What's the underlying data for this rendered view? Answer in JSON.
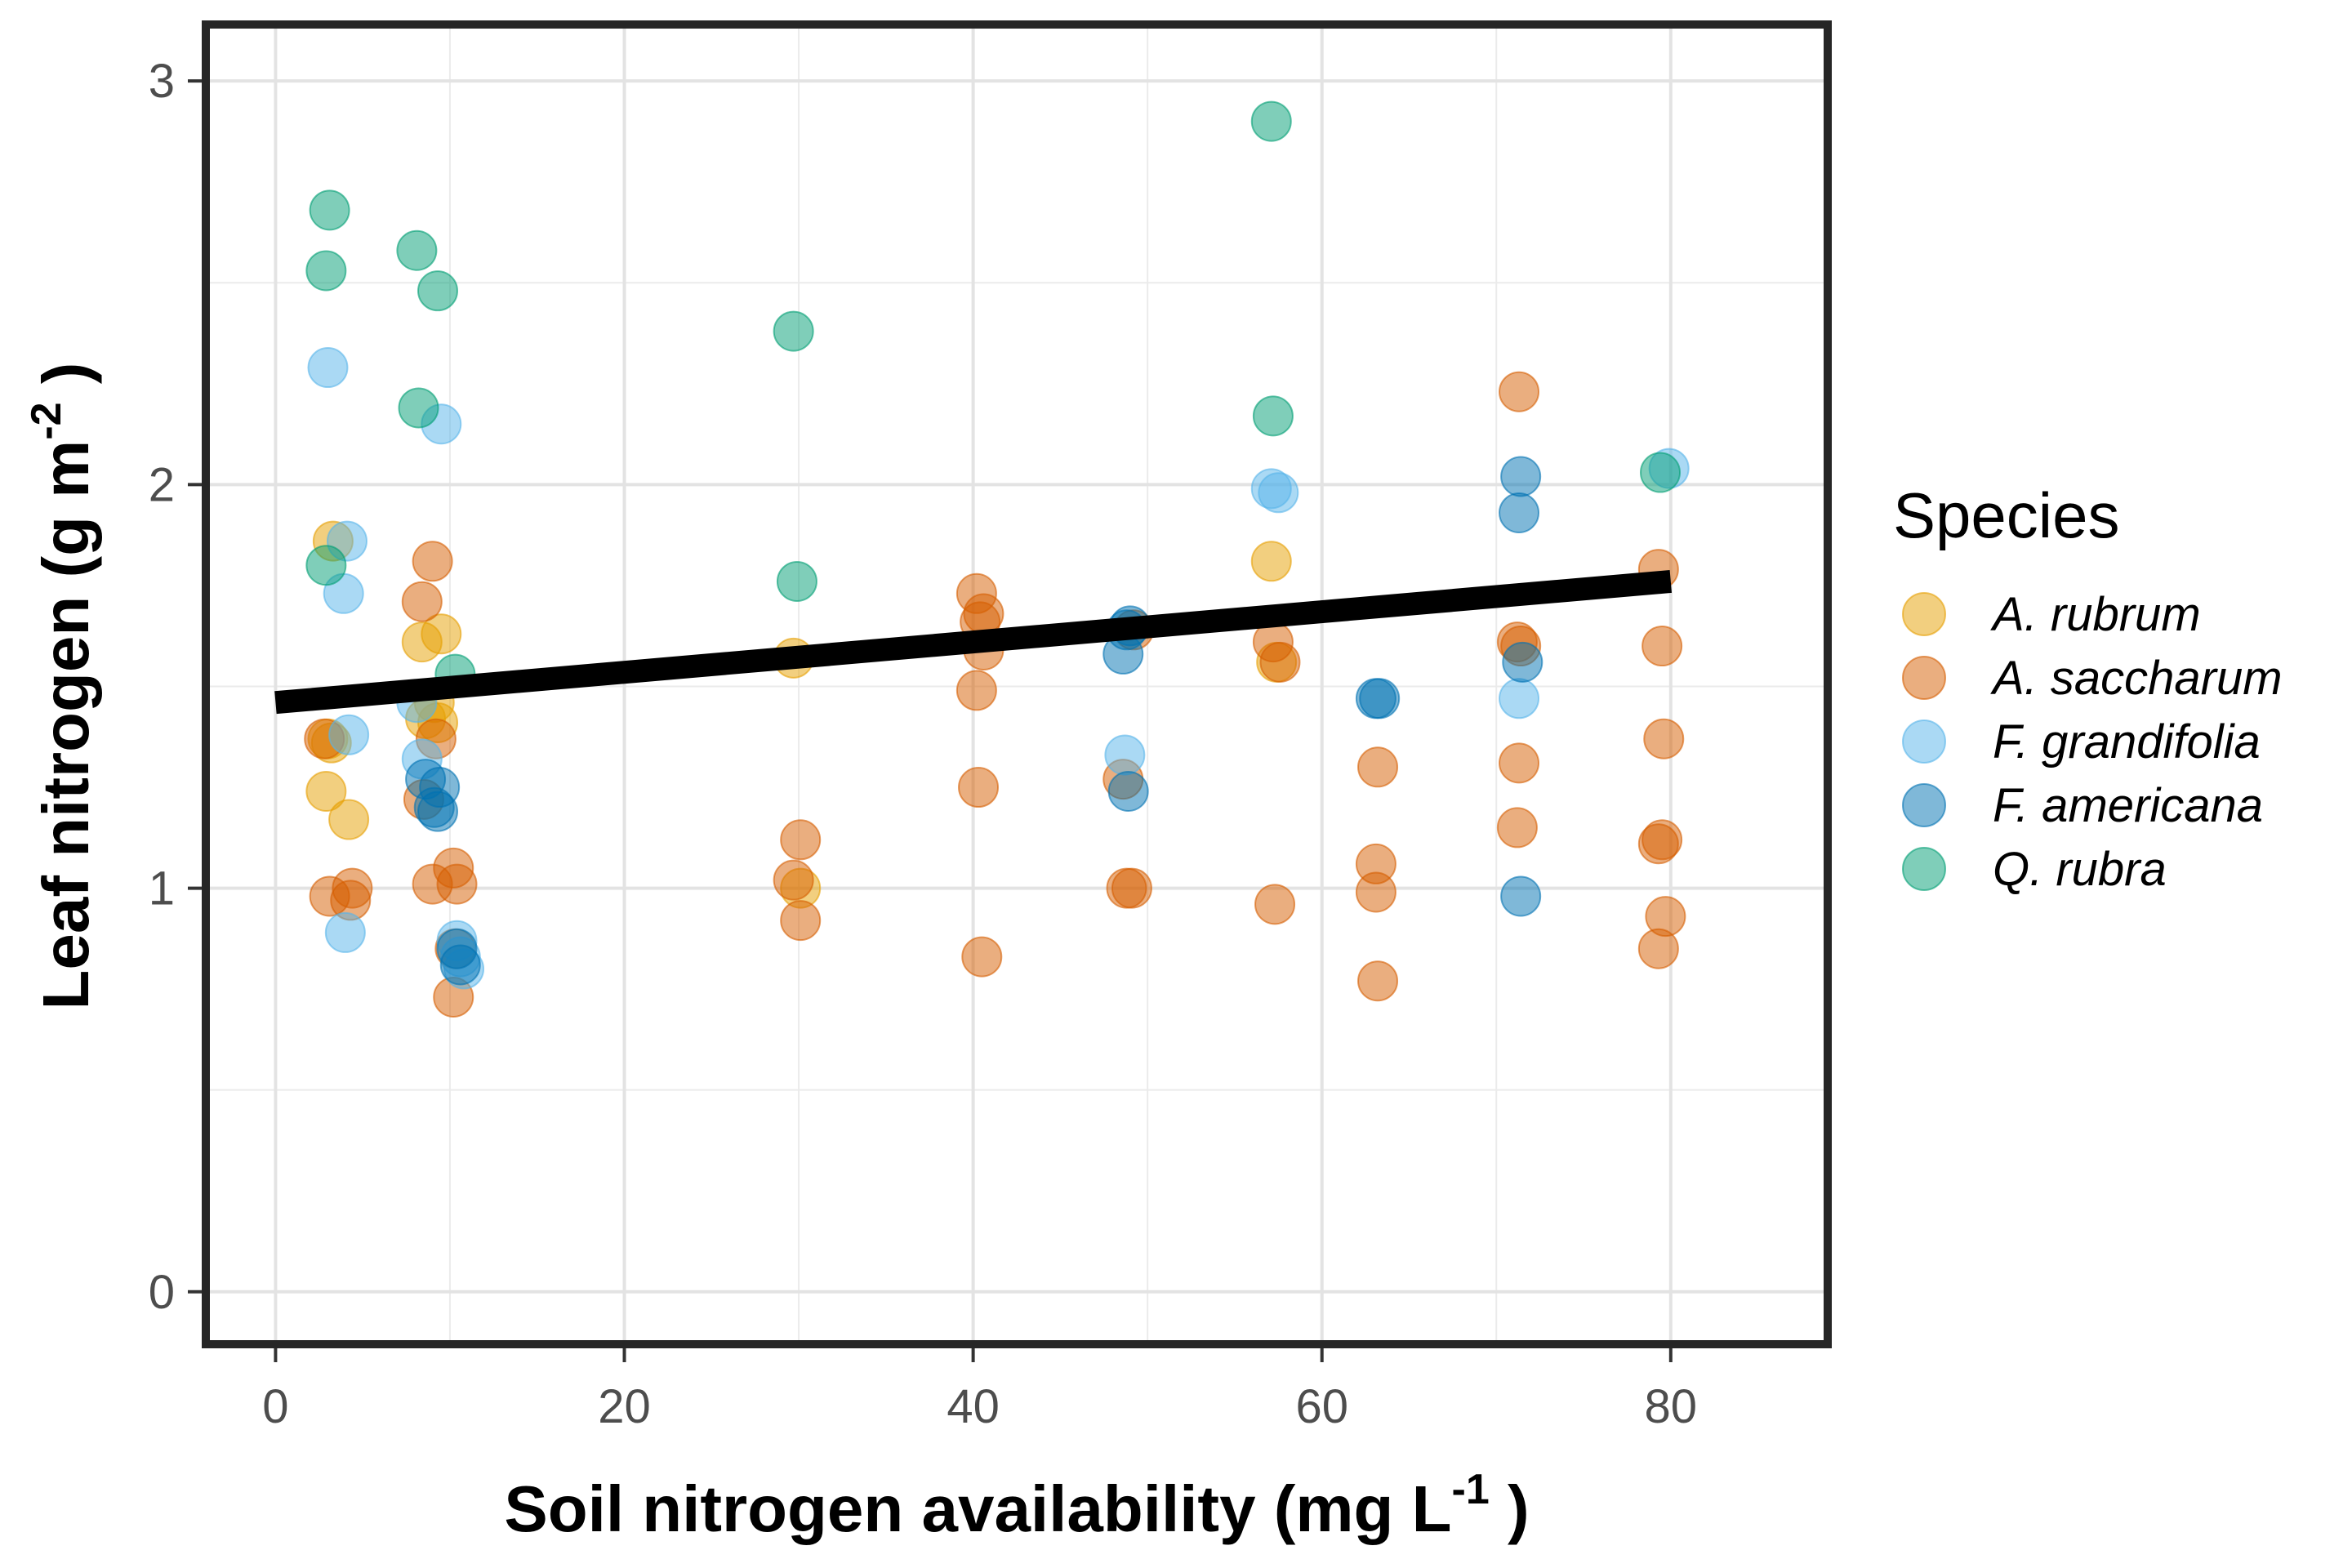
{
  "chart_data": {
    "type": "scatter",
    "xlabel": "Soil nitrogen availability (mg L",
    "xlabel_sup": "-1",
    "xlabel_end": " )",
    "ylabel": "Leaf nitrogen (g m",
    "ylabel_sup": "-2",
    "ylabel_end": " )",
    "xlim": [
      -4,
      89
    ],
    "ylim": [
      -0.13,
      3.14
    ],
    "x_ticks": [
      0,
      20,
      40,
      60,
      80
    ],
    "y_ticks": [
      0,
      1,
      2,
      3
    ],
    "x_tick_labels": [
      "0",
      "20",
      "40",
      "60",
      "80"
    ],
    "y_tick_labels": [
      "0",
      "1",
      "2",
      "3"
    ],
    "grid": true,
    "legend": {
      "title": "Species",
      "placement": "right"
    },
    "series": [
      {
        "name": "A. rubrum",
        "color": "#E69F00",
        "points": [
          [
            3.3,
            1.86
          ],
          [
            3.0,
            1.37
          ],
          [
            3.2,
            1.36
          ],
          [
            2.9,
            1.24
          ],
          [
            4.2,
            1.17
          ],
          [
            8.4,
            1.61
          ],
          [
            9.5,
            1.63
          ],
          [
            8.6,
            1.42
          ],
          [
            9.1,
            1.46
          ],
          [
            9.3,
            1.41
          ],
          [
            29.7,
            1.57
          ],
          [
            30.1,
            1.0
          ],
          [
            57.1,
            1.81
          ],
          [
            57.4,
            1.56
          ]
        ]
      },
      {
        "name": "A. saccharum",
        "color": "#D55E00",
        "points": [
          [
            2.8,
            1.37
          ],
          [
            3.1,
            0.98
          ],
          [
            4.4,
            1.0
          ],
          [
            4.3,
            0.97
          ],
          [
            8.4,
            1.71
          ],
          [
            9.0,
            1.81
          ],
          [
            9.2,
            1.37
          ],
          [
            8.5,
            1.22
          ],
          [
            9.0,
            1.01
          ],
          [
            10.2,
            1.05
          ],
          [
            10.4,
            1.01
          ],
          [
            10.3,
            0.85
          ],
          [
            10.2,
            0.73
          ],
          [
            29.7,
            1.02
          ],
          [
            30.1,
            1.12
          ],
          [
            30.1,
            0.92
          ],
          [
            40.2,
            1.73
          ],
          [
            40.4,
            1.66
          ],
          [
            40.6,
            1.68
          ],
          [
            40.6,
            1.59
          ],
          [
            40.2,
            1.49
          ],
          [
            40.3,
            1.25
          ],
          [
            40.5,
            0.83
          ],
          [
            48.6,
            1.27
          ],
          [
            48.8,
            1.0
          ],
          [
            49.1,
            1.0
          ],
          [
            49.2,
            1.64
          ],
          [
            57.2,
            1.61
          ],
          [
            57.6,
            1.56
          ],
          [
            57.3,
            0.96
          ],
          [
            63.2,
            1.3
          ],
          [
            63.1,
            1.06
          ],
          [
            63.1,
            0.99
          ],
          [
            63.2,
            0.77
          ],
          [
            71.3,
            2.23
          ],
          [
            71.2,
            1.61
          ],
          [
            71.4,
            1.6
          ],
          [
            71.3,
            1.31
          ],
          [
            71.2,
            1.15
          ],
          [
            79.3,
            1.79
          ],
          [
            79.5,
            1.6
          ],
          [
            79.6,
            1.37
          ],
          [
            79.3,
            1.11
          ],
          [
            79.5,
            1.12
          ],
          [
            79.7,
            0.93
          ],
          [
            79.3,
            0.85
          ]
        ]
      },
      {
        "name": "F. grandifolia",
        "color": "#56B4E9",
        "points": [
          [
            3.0,
            2.29
          ],
          [
            4.1,
            1.86
          ],
          [
            3.9,
            1.73
          ],
          [
            4.2,
            1.38
          ],
          [
            4.0,
            0.89
          ],
          [
            8.1,
            1.46
          ],
          [
            8.4,
            1.32
          ],
          [
            9.5,
            2.15
          ],
          [
            10.4,
            0.87
          ],
          [
            10.6,
            0.83
          ],
          [
            10.8,
            0.8
          ],
          [
            48.7,
            1.33
          ],
          [
            57.1,
            1.99
          ],
          [
            57.5,
            1.98
          ],
          [
            71.3,
            1.47
          ],
          [
            79.9,
            2.04
          ]
        ]
      },
      {
        "name": "F. americana",
        "color": "#0072B2",
        "points": [
          [
            8.6,
            1.27
          ],
          [
            9.1,
            1.2
          ],
          [
            9.4,
            1.25
          ],
          [
            9.3,
            1.19
          ],
          [
            10.4,
            0.85
          ],
          [
            10.6,
            0.81
          ],
          [
            48.6,
            1.58
          ],
          [
            48.8,
            1.64
          ],
          [
            49.0,
            1.65
          ],
          [
            48.9,
            1.24
          ],
          [
            63.1,
            1.47
          ],
          [
            63.3,
            1.47
          ],
          [
            71.4,
            2.02
          ],
          [
            71.3,
            1.93
          ],
          [
            71.5,
            1.56
          ],
          [
            71.4,
            0.98
          ]
        ]
      },
      {
        "name": "Q. rubra",
        "color": "#009E73",
        "points": [
          [
            3.1,
            2.68
          ],
          [
            2.9,
            2.53
          ],
          [
            2.9,
            1.8
          ],
          [
            8.1,
            2.58
          ],
          [
            8.2,
            2.19
          ],
          [
            9.3,
            2.48
          ],
          [
            10.3,
            1.53
          ],
          [
            29.7,
            2.38
          ],
          [
            29.9,
            1.76
          ],
          [
            57.1,
            2.9
          ],
          [
            57.2,
            2.17
          ],
          [
            79.4,
            2.03
          ]
        ]
      }
    ],
    "trend_line": {
      "x": [
        0,
        80
      ],
      "y": [
        1.46,
        1.76
      ],
      "color": "#000000"
    }
  }
}
